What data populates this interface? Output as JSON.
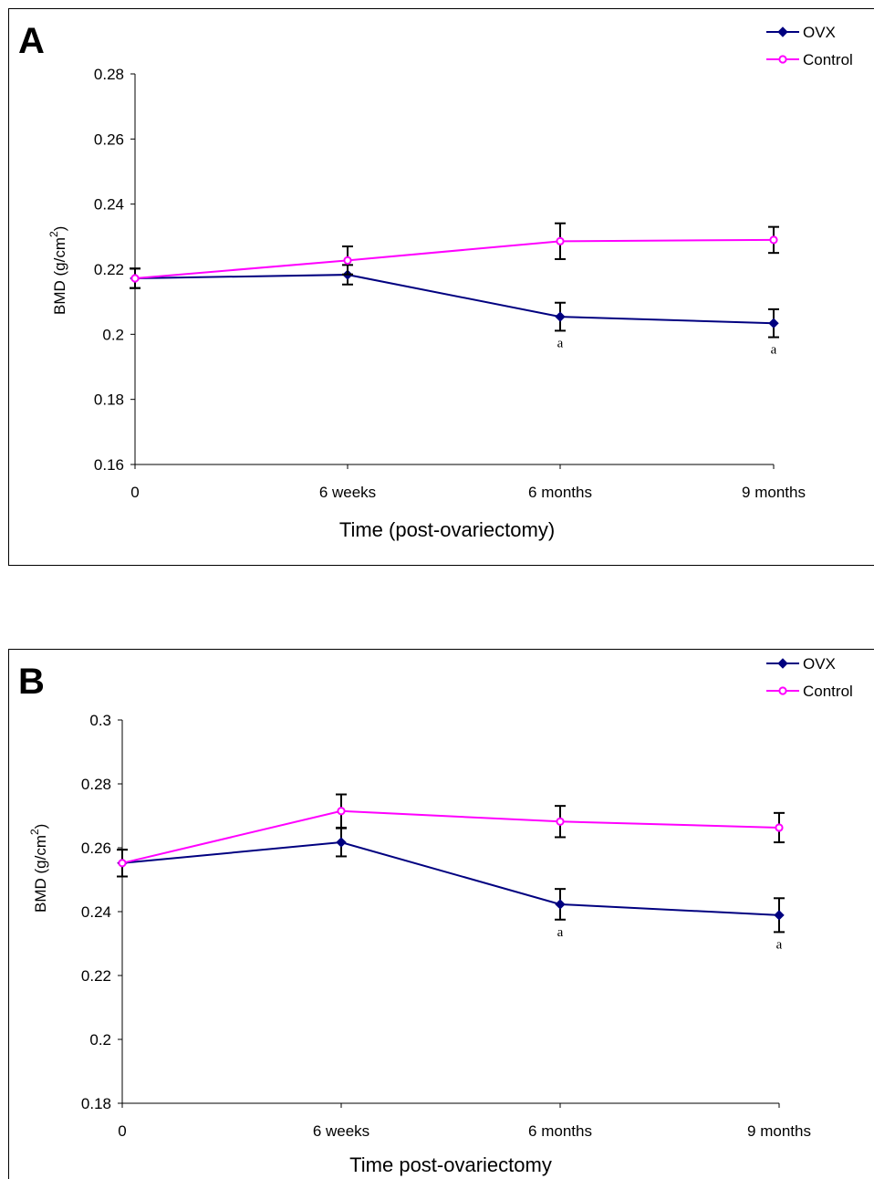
{
  "chart_data": [
    {
      "panel": "A",
      "type": "line",
      "xlabel": "Time (post-ovariectomy)",
      "ylabel": "BMD (g/cm",
      "ylabel_sup": "2",
      "ylabel_close": ")",
      "categories": [
        "0",
        "6 weeks",
        "6 months",
        "9 months"
      ],
      "ylim": [
        0.16,
        0.28
      ],
      "yticks": [
        "0.16",
        "0.18",
        "0.2",
        "0.22",
        "0.24",
        "0.26",
        "0.28"
      ],
      "grid": false,
      "legend_position": "top-right",
      "series": [
        {
          "name": "OVX",
          "color": "#000080",
          "marker": "diamond",
          "values": [
            0.2172,
            0.2183,
            0.2054,
            0.2034
          ],
          "errors": [
            0.003,
            0.003,
            0.0043,
            0.0043
          ]
        },
        {
          "name": "Control",
          "color": "#ff00ff",
          "marker": "circle",
          "values": [
            0.2172,
            0.2227,
            0.2286,
            0.229
          ],
          "errors": [
            0.003,
            0.0043,
            0.0055,
            0.004
          ]
        }
      ],
      "annotations": [
        {
          "category": "6 months",
          "text": "a"
        },
        {
          "category": "9 months",
          "text": "a"
        }
      ]
    },
    {
      "panel": "B",
      "type": "line",
      "xlabel": "Time post-ovariectomy",
      "ylabel": "BMD (g/cm",
      "ylabel_sup": "2",
      "ylabel_close": ")",
      "categories": [
        "0",
        "6  weeks",
        "6 months",
        "9 months"
      ],
      "ylim": [
        0.18,
        0.3
      ],
      "yticks": [
        "0.18",
        "0.2",
        "0.22",
        "0.24",
        "0.26",
        "0.28",
        "0.3"
      ],
      "grid": false,
      "legend_position": "top-right",
      "series": [
        {
          "name": "OVX",
          "color": "#000080",
          "marker": "diamond",
          "values": [
            0.2552,
            0.2617,
            0.2423,
            0.2389
          ],
          "errors": [
            0.0042,
            0.0044,
            0.0048,
            0.0053
          ]
        },
        {
          "name": "Control",
          "color": "#ff00ff",
          "marker": "circle",
          "values": [
            0.2552,
            0.2715,
            0.2682,
            0.2663
          ],
          "errors": [
            0.0042,
            0.0052,
            0.0049,
            0.0046
          ]
        }
      ],
      "annotations": [
        {
          "category": "6 months",
          "text": "a"
        },
        {
          "category": "9 months",
          "text": "a"
        }
      ]
    }
  ]
}
